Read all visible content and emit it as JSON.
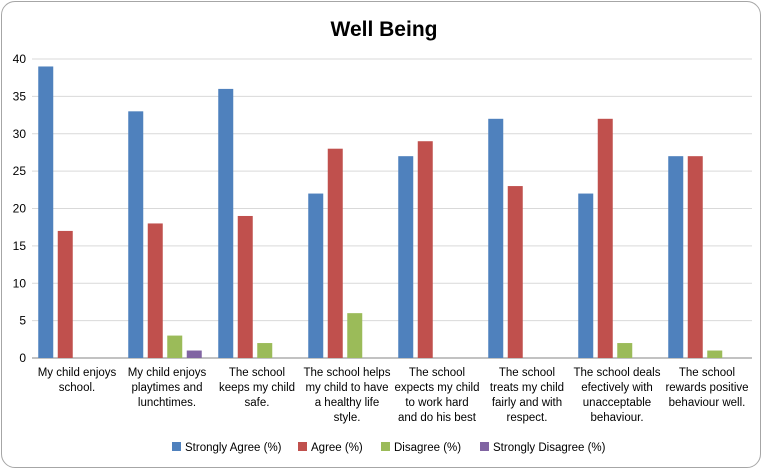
{
  "chart_data": {
    "type": "bar",
    "title": "Well Being",
    "xlabel": "",
    "ylabel": "",
    "ylim": [
      0,
      40
    ],
    "yticks": [
      0,
      5,
      10,
      15,
      20,
      25,
      30,
      35,
      40
    ],
    "grid": true,
    "legend_position": "bottom",
    "categories": [
      [
        "My child enjoys",
        "school."
      ],
      [
        "My child enjoys",
        "playtimes and",
        "lunchtimes."
      ],
      [
        "The school",
        "keeps my child",
        "safe."
      ],
      [
        "The school helps",
        "my child to have",
        "a healthy life",
        "style."
      ],
      [
        "The school",
        "expects my child",
        "to work hard",
        "and do his best"
      ],
      [
        "The school",
        "treats my child",
        "fairly and with",
        "respect."
      ],
      [
        "The school deals",
        "efectively with",
        "unacceptable",
        "behaviour."
      ],
      [
        "The school",
        "rewards positive",
        "behaviour well."
      ]
    ],
    "series": [
      {
        "name": "Strongly Agree (%)",
        "color": "#4f81bd",
        "values": [
          39,
          33,
          36,
          22,
          27,
          32,
          22,
          27
        ]
      },
      {
        "name": "Agree (%)",
        "color": "#c0504d",
        "values": [
          17,
          18,
          19,
          28,
          29,
          23,
          32,
          27
        ]
      },
      {
        "name": "Disagree (%)",
        "color": "#9bbb59",
        "values": [
          0,
          3,
          2,
          6,
          0,
          0,
          2,
          1
        ]
      },
      {
        "name": "Strongly Disagree (%)",
        "color": "#8064a2",
        "values": [
          0,
          1,
          0,
          0,
          0,
          0,
          0,
          0
        ]
      }
    ]
  }
}
